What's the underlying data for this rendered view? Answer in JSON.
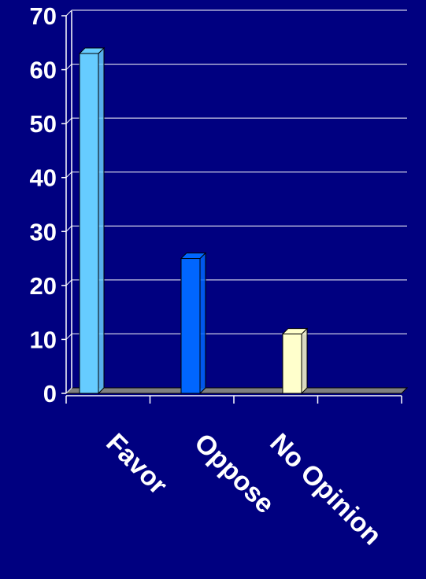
{
  "chart_data": {
    "type": "bar",
    "categories": [
      "Favor",
      "Oppose",
      "No Opinion"
    ],
    "values": [
      63,
      25,
      11
    ],
    "series_colors": [
      "#66CCFF",
      "#0066FF",
      "#FFFFCC"
    ],
    "ylim": [
      0,
      70
    ],
    "yticks": [
      0,
      10,
      20,
      30,
      40,
      50,
      60,
      70
    ],
    "grid": true,
    "style": "3d-bar",
    "colors": {
      "background": "#000080",
      "gridline": "#FFFFFF",
      "text": "#FFFFFF",
      "floor": "#808080"
    }
  }
}
